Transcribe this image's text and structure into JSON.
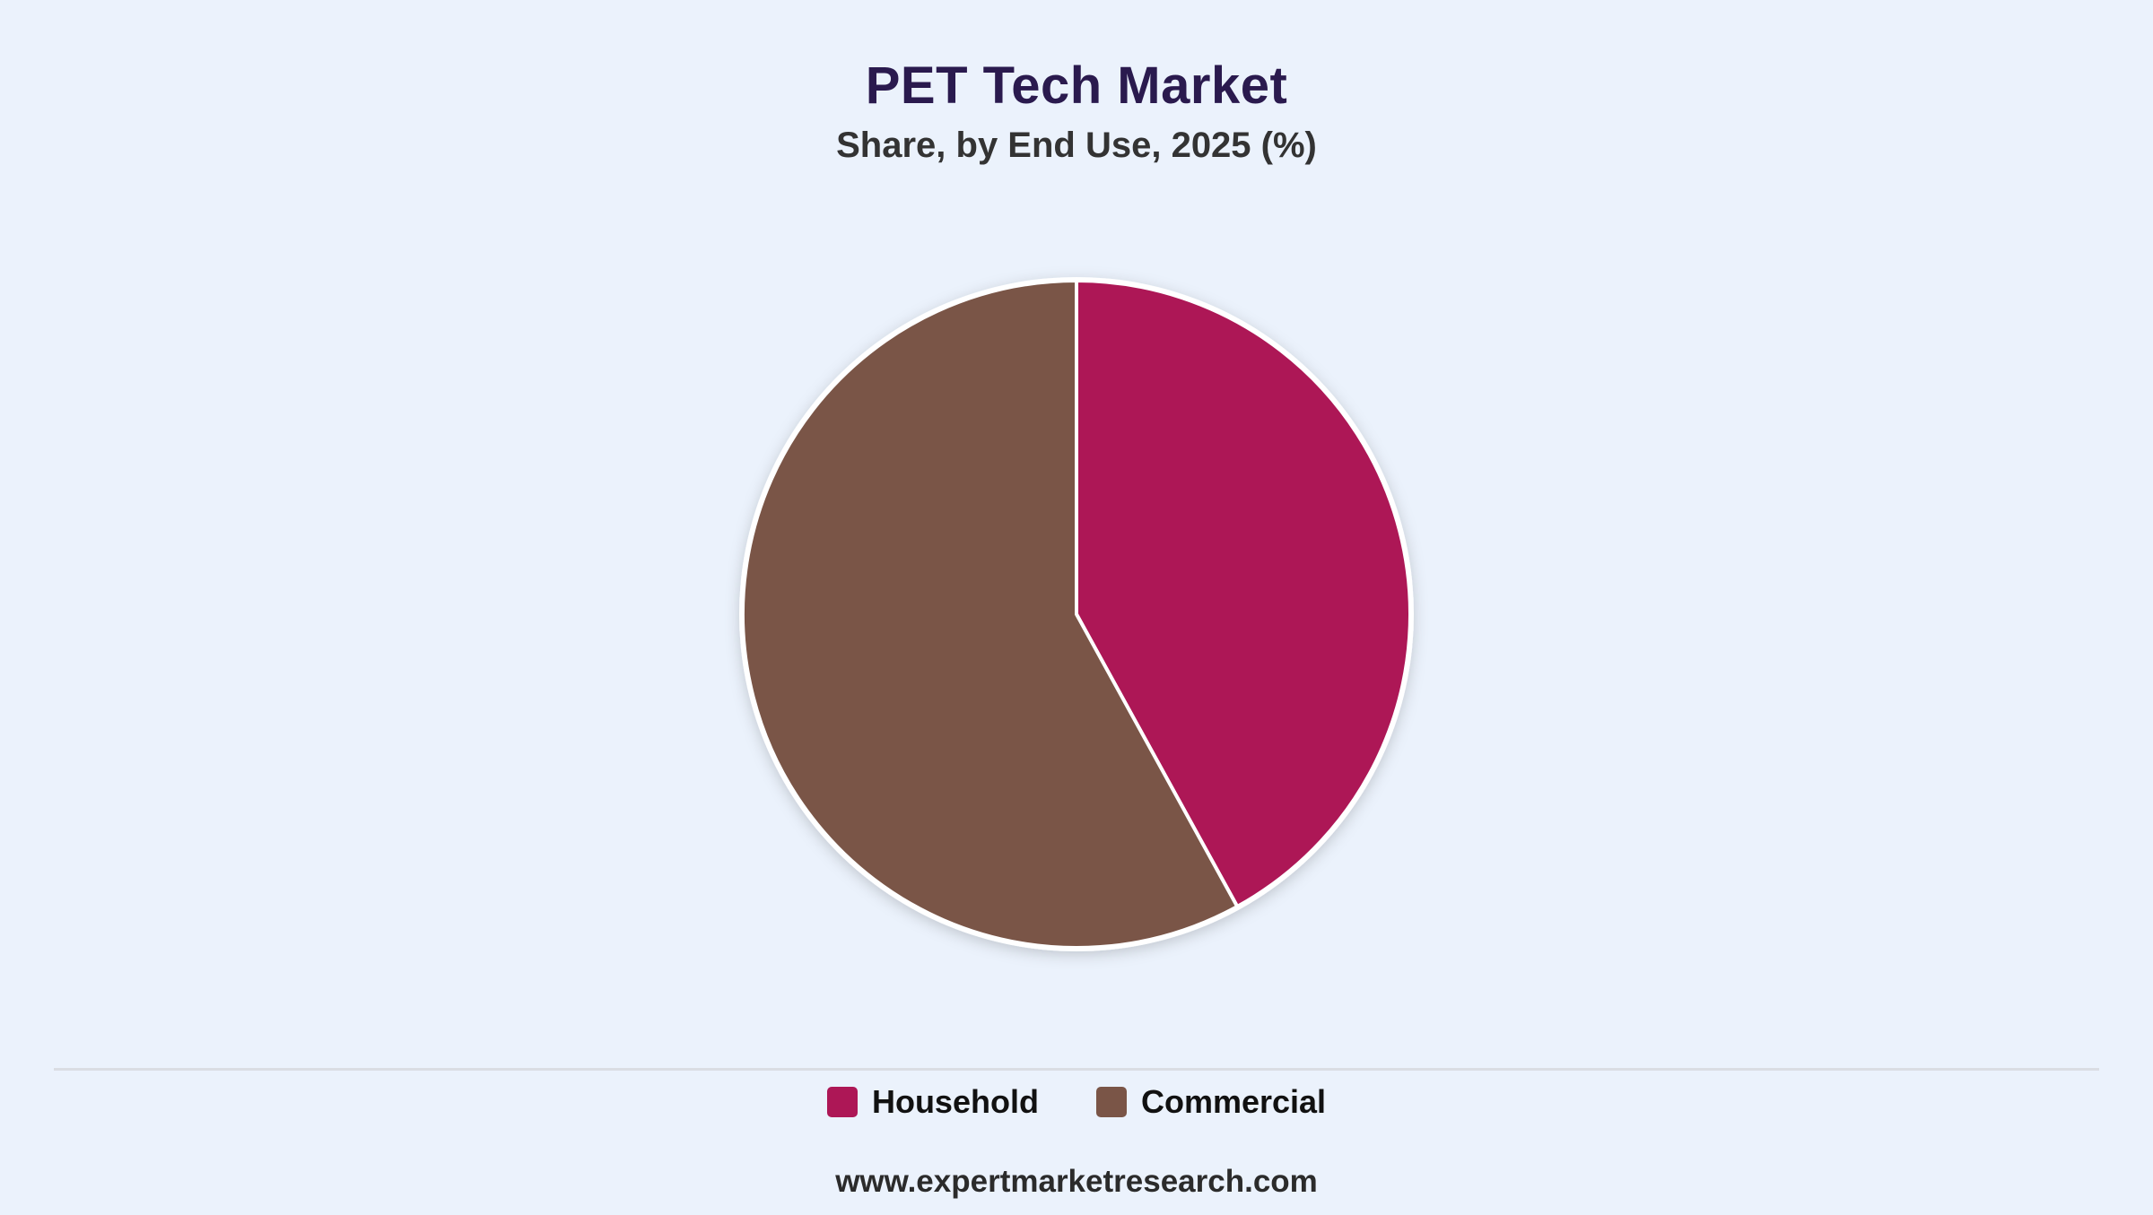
{
  "title": "PET Tech Market",
  "subtitle": "Share, by End Use, 2025 (%)",
  "source": "www.expertmarketresearch.com",
  "colors": {
    "background": "#EBF2FC",
    "household": "#AD1756",
    "commercial": "#7A5547"
  },
  "chart_data": {
    "type": "pie",
    "title": "PET Tech Market",
    "subtitle": "Share, by End Use, 2025 (%)",
    "categories": [
      "Household",
      "Commercial"
    ],
    "values": [
      42,
      58
    ],
    "colors": [
      "#AD1756",
      "#7A5547"
    ],
    "start_angle": "12 o'clock",
    "direction": "clockwise",
    "legend_position": "bottom"
  },
  "legend": {
    "items": [
      {
        "label": "Household",
        "color": "#AD1756"
      },
      {
        "label": "Commercial",
        "color": "#7A5547"
      }
    ]
  }
}
